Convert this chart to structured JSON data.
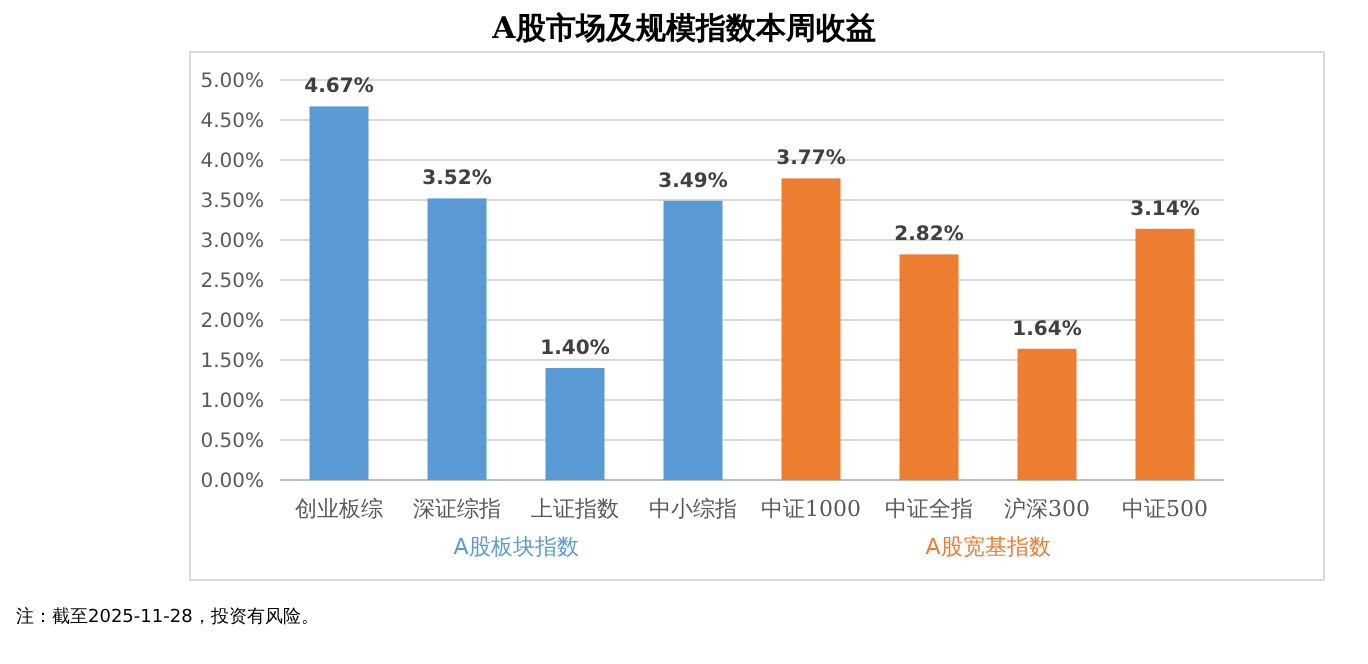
{
  "chart_data": {
    "type": "bar",
    "title": "A股市场及规模指数本周收益",
    "categories": [
      "创业板综",
      "深证综指",
      "上证指数",
      "中小综指",
      "中证1000",
      "中证全指",
      "沪深300",
      "中证500"
    ],
    "values": [
      4.67,
      3.52,
      1.4,
      3.49,
      3.77,
      2.82,
      1.64,
      3.14
    ],
    "value_labels": [
      "4.67%",
      "3.52%",
      "1.40%",
      "3.49%",
      "3.77%",
      "2.82%",
      "1.64%",
      "3.14%"
    ],
    "colors": [
      "#5b9bd5",
      "#5b9bd5",
      "#5b9bd5",
      "#5b9bd5",
      "#ed7d31",
      "#ed7d31",
      "#ed7d31",
      "#ed7d31"
    ],
    "ylim": [
      0,
      5
    ],
    "yticks": [
      {
        "value": 0,
        "label": "0.00%"
      },
      {
        "value": 0.5,
        "label": "0.50%"
      },
      {
        "value": 1,
        "label": "1.00%"
      },
      {
        "value": 1.5,
        "label": "1.50%"
      },
      {
        "value": 2,
        "label": "2.00%"
      },
      {
        "value": 2.5,
        "label": "2.50%"
      },
      {
        "value": 3,
        "label": "3.00%"
      },
      {
        "value": 3.5,
        "label": "3.50%"
      },
      {
        "value": 4,
        "label": "4.00%"
      },
      {
        "value": 4.5,
        "label": "4.50%"
      },
      {
        "value": 5,
        "label": "5.00%"
      }
    ],
    "grid": "y",
    "annotations": [
      "A股板块指数",
      "A股宽基指数",
      "注：截至2025-11-28，投资有风险。"
    ]
  }
}
